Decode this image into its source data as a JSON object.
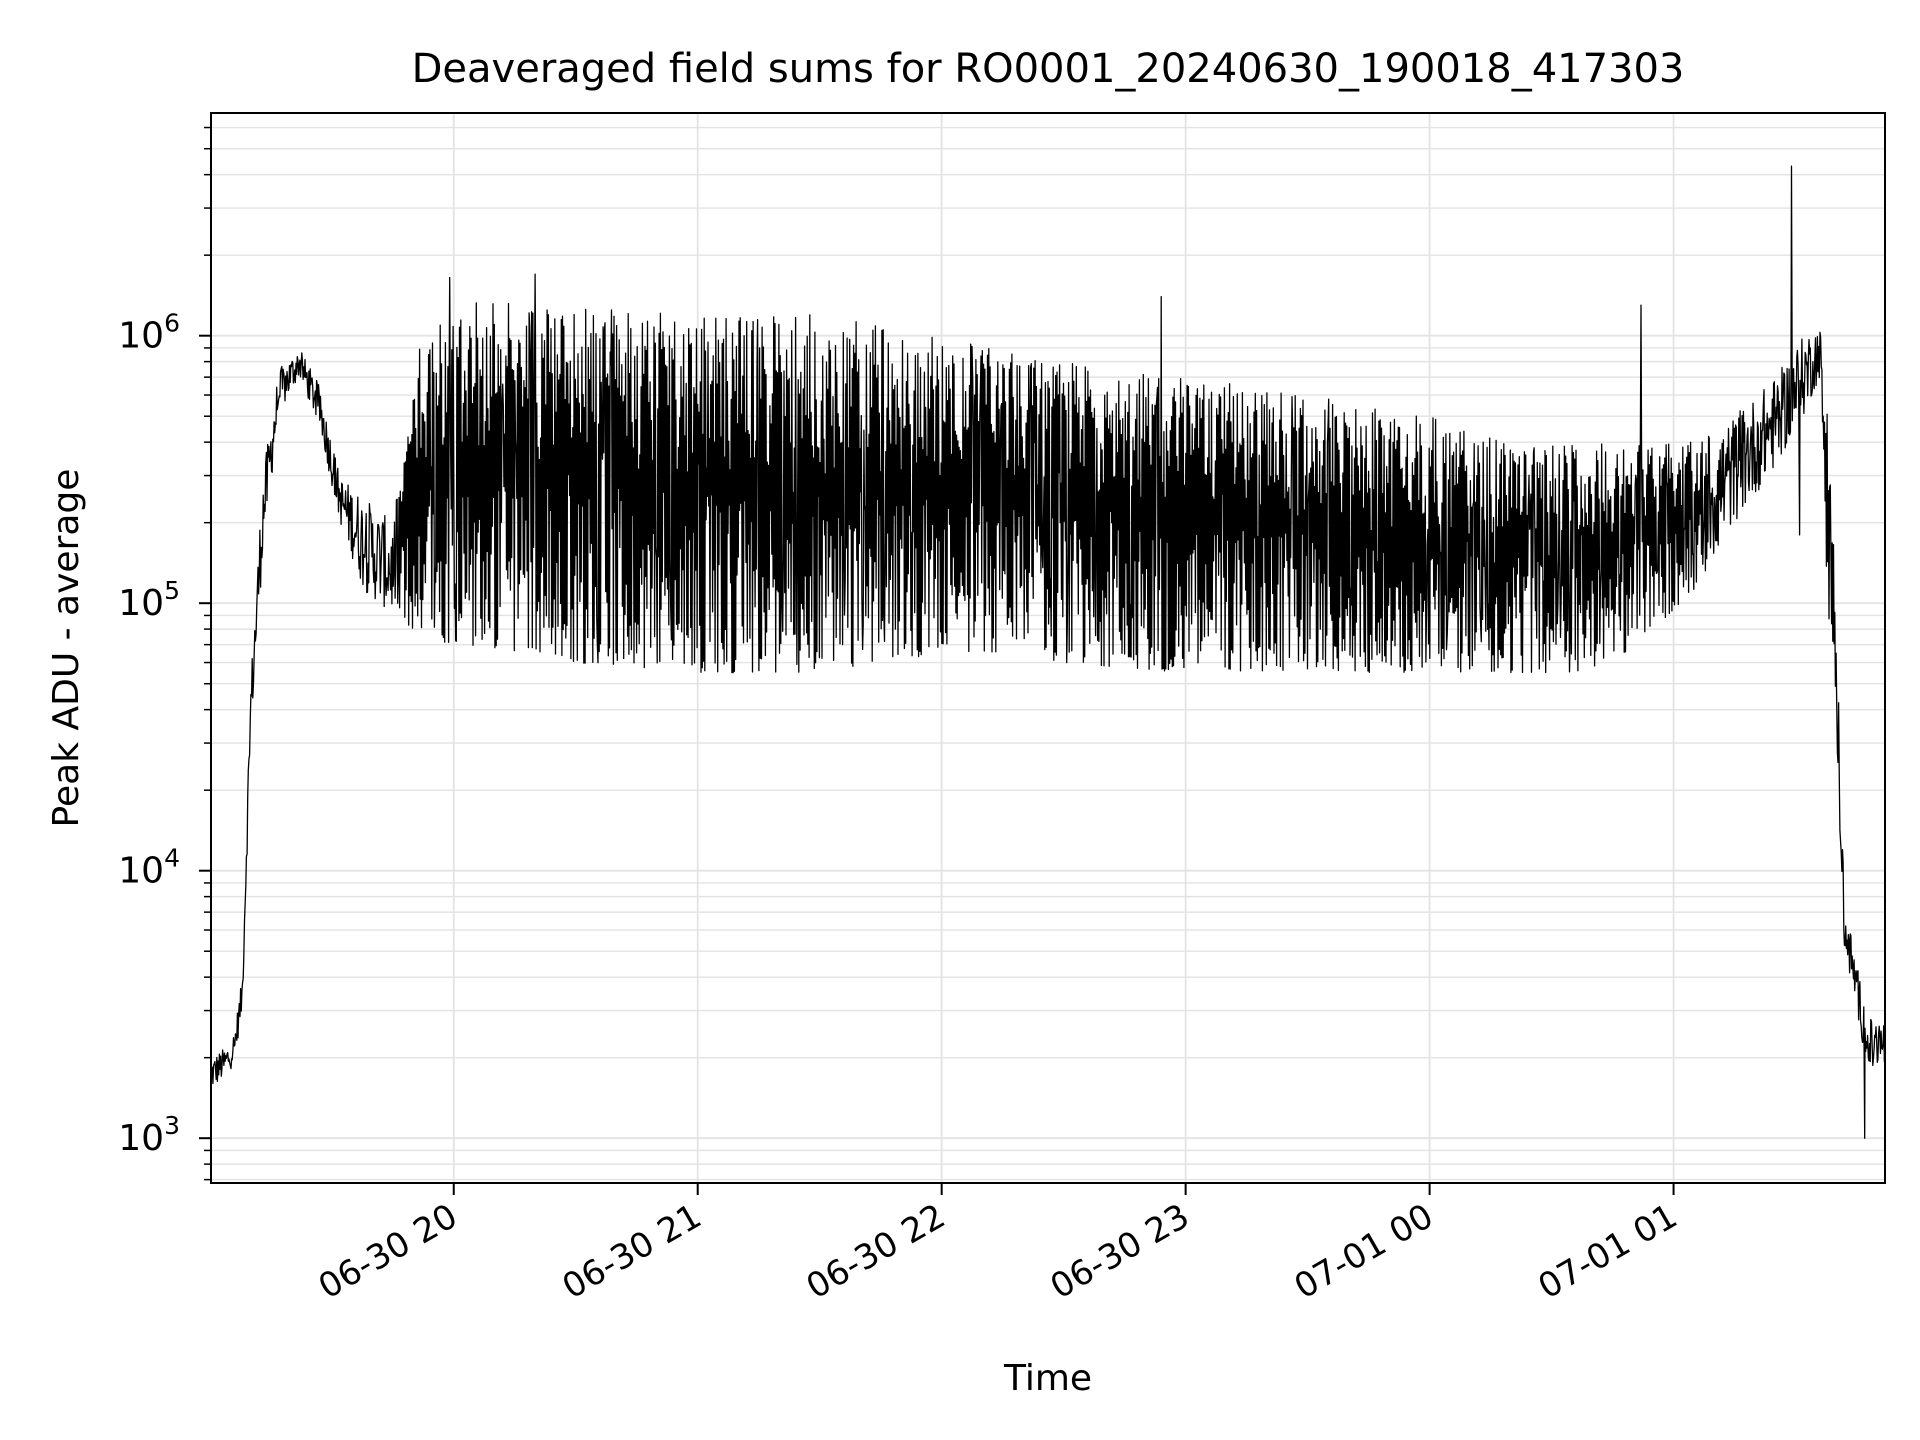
{
  "chart_data": {
    "type": "line",
    "title": "Deaveraged field sums for RO0001_20240630_190018_417303",
    "xlabel": "Time",
    "ylabel": "Peak ADU - average",
    "yscale": "log",
    "xlim": [
      "2024-06-30 19:00:18",
      "2024-07-01 01:52:00"
    ],
    "ylim": [
      680,
      6800000
    ],
    "grid": true,
    "legend": "none",
    "line_color": "#000000",
    "grid_color": "#e3e3e3",
    "x_ticks": [
      {
        "value": "2024-06-30 20:00",
        "label": "06-30 20"
      },
      {
        "value": "2024-06-30 21:00",
        "label": "06-30 21"
      },
      {
        "value": "2024-06-30 22:00",
        "label": "06-30 22"
      },
      {
        "value": "2024-06-30 23:00",
        "label": "06-30 23"
      },
      {
        "value": "2024-07-01 00:00",
        "label": "07-01 00"
      },
      {
        "value": "2024-07-01 01:00",
        "label": "07-01 01"
      }
    ],
    "y_ticks": [
      {
        "value": 1000,
        "base": "10",
        "exp": "3"
      },
      {
        "value": 10000,
        "base": "10",
        "exp": "4"
      },
      {
        "value": 100000,
        "base": "10",
        "exp": "5"
      },
      {
        "value": 1000000,
        "base": "10",
        "exp": "6"
      }
    ],
    "series": [
      {
        "envelope": {
          "x": [
            "2024-06-30 19:00:18",
            "2024-06-30 19:04",
            "2024-06-30 19:06",
            "2024-06-30 19:08",
            "2024-06-30 19:10",
            "2024-06-30 19:13",
            "2024-06-30 19:17",
            "2024-06-30 19:22",
            "2024-06-30 19:27",
            "2024-06-30 19:32",
            "2024-06-30 19:38",
            "2024-06-30 19:45",
            "2024-06-30 19:52",
            "2024-06-30 20:00",
            "2024-06-30 20:30",
            "2024-06-30 21:00",
            "2024-06-30 21:30",
            "2024-06-30 22:00",
            "2024-06-30 22:30",
            "2024-06-30 23:00",
            "2024-06-30 23:30",
            "2024-07-01 00:00",
            "2024-07-01 00:20",
            "2024-07-01 00:35",
            "2024-07-01 00:45",
            "2024-07-01 00:55",
            "2024-07-01 01:05",
            "2024-07-01 01:15",
            "2024-07-01 01:25",
            "2024-07-01 01:32",
            "2024-07-01 01:36",
            "2024-07-01 01:38",
            "2024-07-01 01:40",
            "2024-07-01 01:42",
            "2024-07-01 01:45",
            "2024-07-01 01:48",
            "2024-07-01 01:52"
          ],
          "low": [
            1500,
            1700,
            1900,
            3000,
            30000,
            150000,
            500000,
            700000,
            450000,
            200000,
            110000,
            90000,
            75000,
            70000,
            60000,
            55000,
            55000,
            65000,
            60000,
            55000,
            55000,
            55000,
            55000,
            55000,
            60000,
            80000,
            110000,
            200000,
            320000,
            500000,
            700000,
            90000,
            30000,
            5000,
            3000,
            1700,
            1800
          ],
          "high": [
            2000,
            2200,
            2500,
            4000,
            50000,
            300000,
            750000,
            900000,
            650000,
            300000,
            250000,
            200000,
            1000000,
            1400000,
            1300000,
            1200000,
            1200000,
            1000000,
            800000,
            700000,
            600000,
            500000,
            400000,
            400000,
            400000,
            400000,
            400000,
            500000,
            700000,
            1000000,
            1100000,
            500000,
            100000,
            8000,
            4500,
            2800,
            2800
          ]
        },
        "spikes": [
          {
            "x": "2024-06-30 20:20",
            "y": 1700000
          },
          {
            "x": "2024-06-30 19:59",
            "y": 1650000
          },
          {
            "x": "2024-06-30 22:54",
            "y": 1400000
          },
          {
            "x": "2024-07-01 00:52",
            "y": 1300000
          },
          {
            "x": "2024-07-01 01:29",
            "y": 4300000
          },
          {
            "x": "2024-07-01 01:31",
            "y": 180000
          },
          {
            "x": "2024-07-01 01:47",
            "y": 1000
          }
        ]
      }
    ]
  }
}
